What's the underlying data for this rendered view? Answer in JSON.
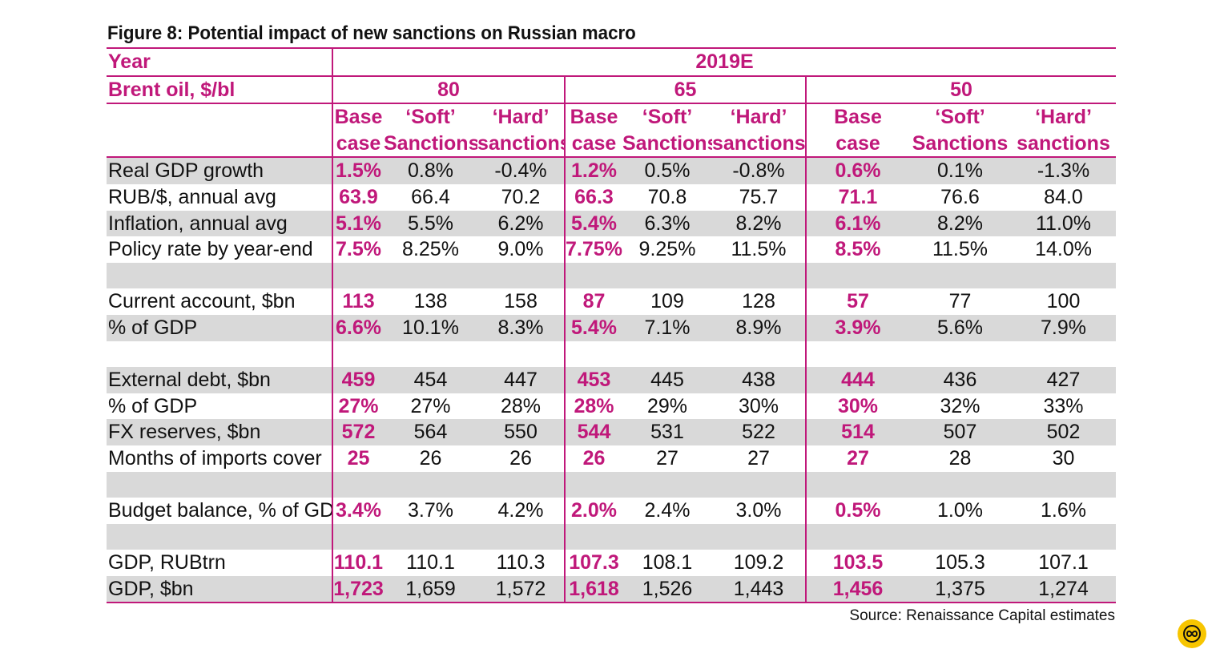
{
  "title": "Figure 8: Potential impact of new sanctions on Russian macro",
  "source": "Source: Renaissance Capital estimates",
  "header": {
    "year_label": "Year",
    "year_value": "2019E",
    "brent_label": "Brent oil, $/bl",
    "oil_prices": [
      "80",
      "65",
      "50"
    ],
    "scenario_line1": [
      "Base",
      "‘Soft’",
      "‘Hard’"
    ],
    "scenario_line2": [
      "case",
      "Sanctions",
      "sanctions"
    ]
  },
  "rows": [
    {
      "label": "Real GDP growth",
      "values": [
        "1.5%",
        "0.8%",
        "-0.4%",
        "1.2%",
        "0.5%",
        "-0.8%",
        "0.6%",
        "0.1%",
        "-1.3%"
      ]
    },
    {
      "label": "RUB/$, annual avg",
      "values": [
        "63.9",
        "66.4",
        "70.2",
        "66.3",
        "70.8",
        "75.7",
        "71.1",
        "76.6",
        "84.0"
      ]
    },
    {
      "label": "Inflation, annual avg",
      "values": [
        "5.1%",
        "5.5%",
        "6.2%",
        "5.4%",
        "6.3%",
        "8.2%",
        "6.1%",
        "8.2%",
        "11.0%"
      ]
    },
    {
      "label": "Policy rate by year-end",
      "values": [
        "7.5%",
        "8.25%",
        "9.0%",
        "7.75%",
        "9.25%",
        "11.5%",
        "8.5%",
        "11.5%",
        "14.0%"
      ]
    },
    {
      "label": "Current account, $bn",
      "values": [
        "113",
        "138",
        "158",
        "87",
        "109",
        "128",
        "57",
        "77",
        "100"
      ]
    },
    {
      "label": "% of GDP",
      "values": [
        "6.6%",
        "10.1%",
        "8.3%",
        "5.4%",
        "7.1%",
        "8.9%",
        "3.9%",
        "5.6%",
        "7.9%"
      ]
    },
    {
      "label": "External debt, $bn",
      "values": [
        "459",
        "454",
        "447",
        "453",
        "445",
        "438",
        "444",
        "436",
        "427"
      ]
    },
    {
      "label": "% of GDP",
      "values": [
        "27%",
        "27%",
        "28%",
        "28%",
        "29%",
        "30%",
        "30%",
        "32%",
        "33%"
      ]
    },
    {
      "label": "FX reserves, $bn",
      "values": [
        "572",
        "564",
        "550",
        "544",
        "531",
        "522",
        "514",
        "507",
        "502"
      ]
    },
    {
      "label": "Months of imports cover",
      "values": [
        "25",
        "26",
        "26",
        "26",
        "27",
        "27",
        "27",
        "28",
        "30"
      ]
    },
    {
      "label": "Budget balance, % of GDP",
      "values": [
        "3.4%",
        "3.7%",
        "4.2%",
        "2.0%",
        "2.4%",
        "3.0%",
        "0.5%",
        "1.0%",
        "1.6%"
      ]
    },
    {
      "label": "GDP, RUBtrn",
      "values": [
        "110.1",
        "110.1",
        "110.3",
        "107.3",
        "108.1",
        "109.2",
        "103.5",
        "105.3",
        "107.1"
      ]
    },
    {
      "label": "GDP, $bn",
      "values": [
        "1,723",
        "1,659",
        "1,572",
        "1,618",
        "1,526",
        "1,443",
        "1,456",
        "1,375",
        "1,274"
      ]
    }
  ],
  "colors": {
    "accent": "#c0187a",
    "shade": "#d9d9d9",
    "logo": "#f7c500"
  },
  "logo_icon": "watermark-logo-icon"
}
